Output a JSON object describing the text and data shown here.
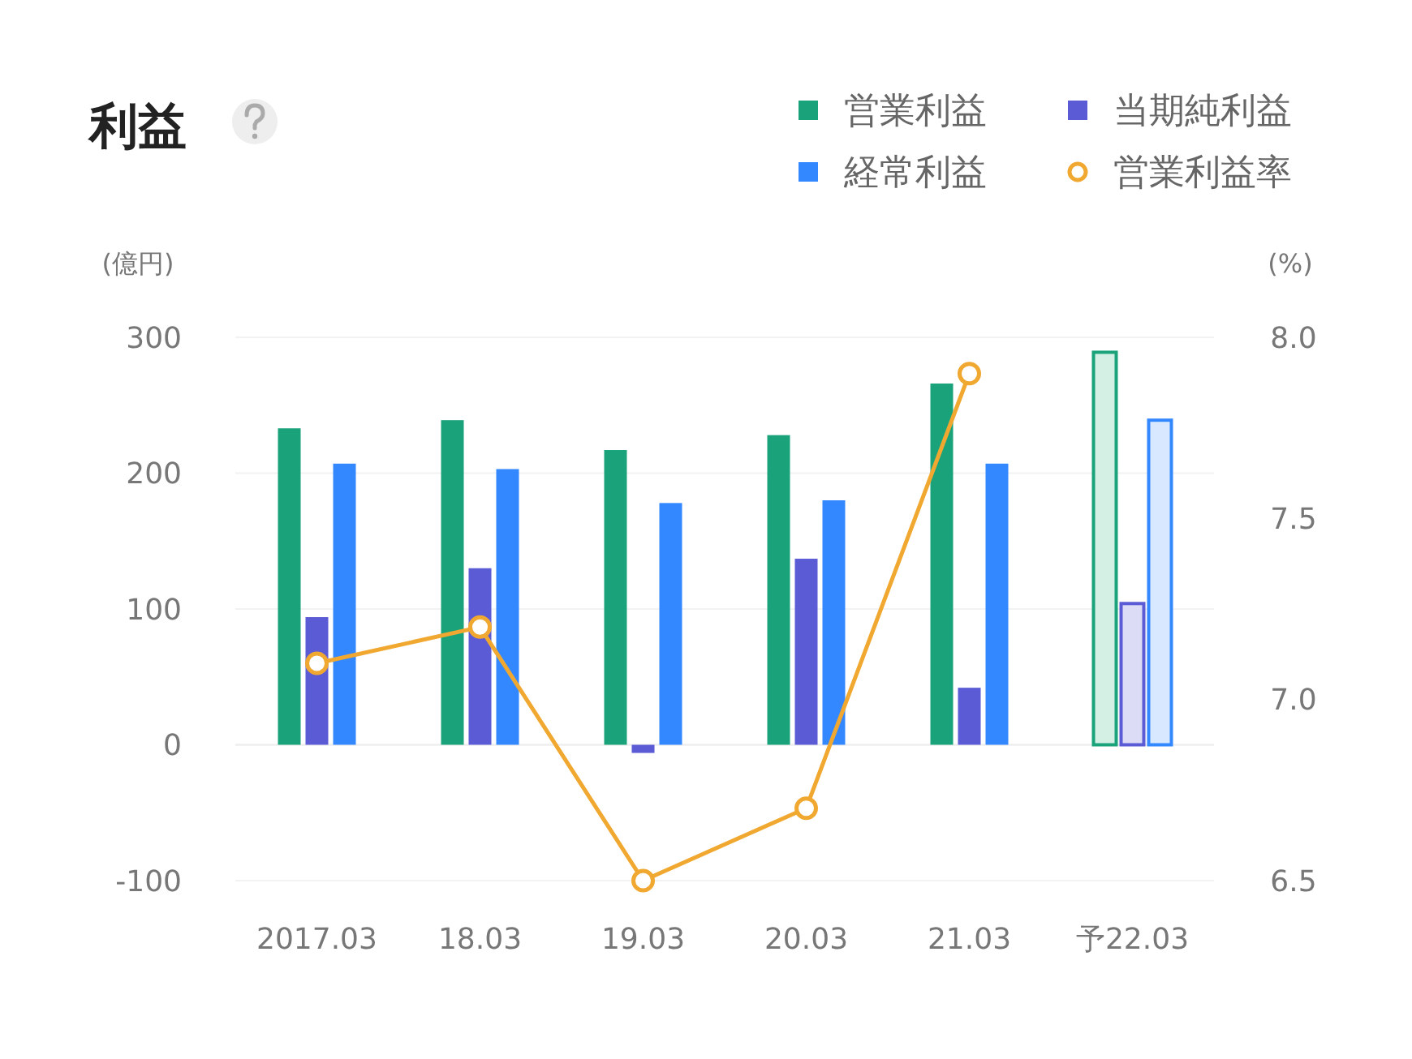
{
  "chart_data": {
    "type": "bar",
    "title": "利益",
    "xlabel": null,
    "ylabel": "(億円)",
    "y2label": "(%)",
    "categories": [
      "2017.03",
      "18.03",
      "19.03",
      "20.03",
      "21.03",
      "予22.03"
    ],
    "series": [
      {
        "name": "営業利益",
        "color": "#1aa37a",
        "colors": [
          "#1aa37a",
          "#1aa37a",
          "#1aa37a",
          "#1aa37a",
          "#1aa37a",
          "#d4f0e4"
        ],
        "values": [
          233,
          239,
          217,
          228,
          266,
          289
        ]
      },
      {
        "name": "当期純利益",
        "color": "#5b5bd6",
        "colors": [
          "#5b5bd6",
          "#5b5bd6",
          "#5b5bd6",
          "#5b5bd6",
          "#5b5bd6",
          "#dcdcf6"
        ],
        "values": [
          94,
          130,
          -6,
          137,
          42,
          104
        ]
      },
      {
        "name": "経常利益",
        "color": "#3388ff",
        "colors": [
          "#3388ff",
          "#3388ff",
          "#3388ff",
          "#3388ff",
          "#3388ff",
          "#d8e8ff"
        ],
        "values": [
          207,
          203,
          178,
          180,
          207,
          239
        ]
      },
      {
        "name": "営業利益率",
        "type": "line",
        "axis": "y2",
        "color": "#f0a830",
        "values": [
          7.1,
          7.2,
          6.5,
          6.7,
          7.9,
          null
        ]
      }
    ],
    "ylim": [
      -100,
      300
    ],
    "yticks": [
      -100,
      0,
      100,
      200,
      300
    ],
    "y2lim": [
      6.5,
      8.0
    ],
    "y2ticks": [
      {
        "value": 6.5,
        "label": "6.5"
      },
      {
        "value": 7.0,
        "label": "7.0"
      },
      {
        "value": 7.5,
        "label": "7.5"
      },
      {
        "value": 8.0,
        "label": "8.0"
      }
    ],
    "grid": "y",
    "legend": "top right",
    "marker": "circle",
    "line_style": "solid"
  }
}
